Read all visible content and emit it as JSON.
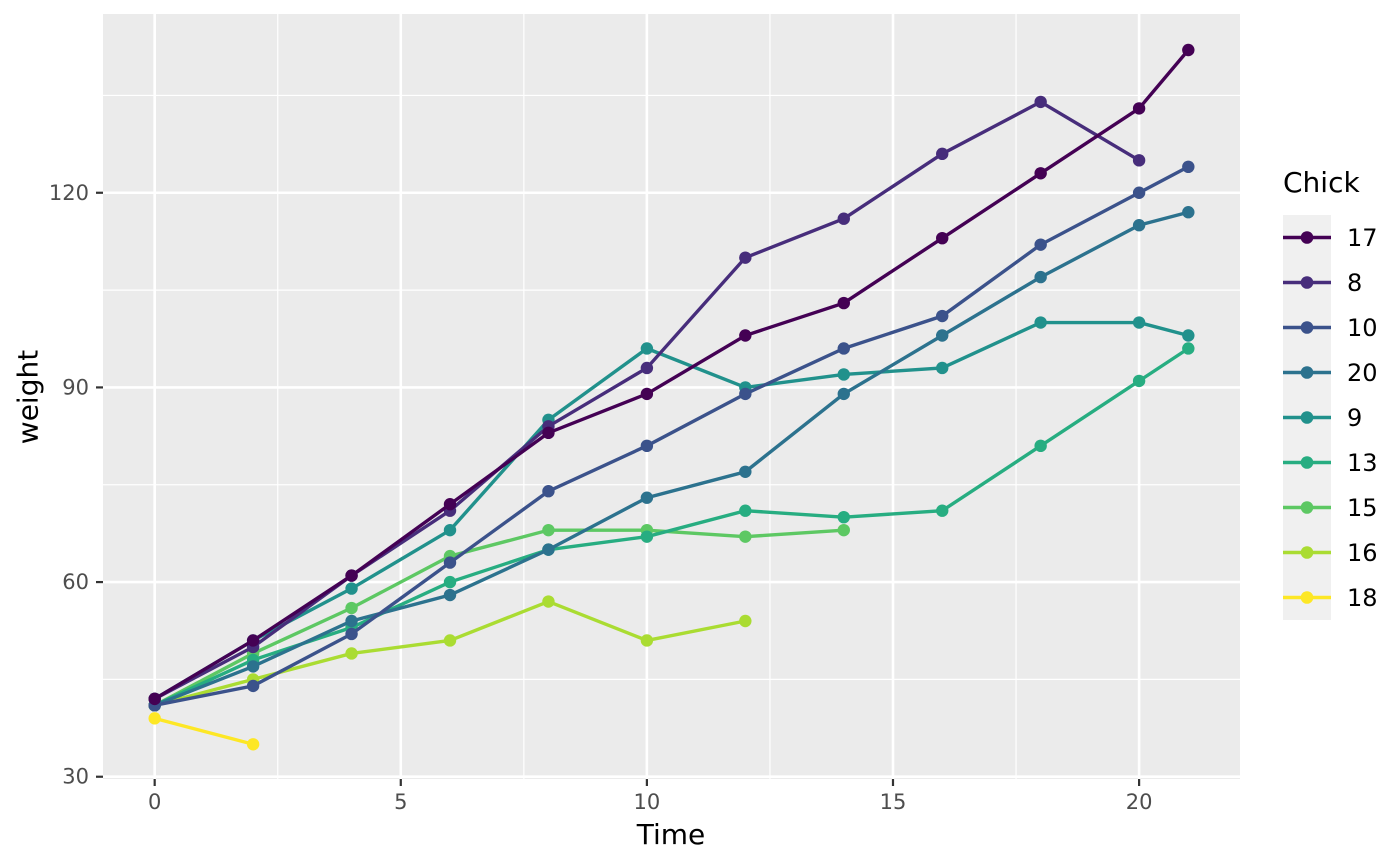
{
  "chart_data": {
    "type": "line",
    "title": "",
    "xlabel": "Time",
    "ylabel": "weight",
    "legend_title": "Chick",
    "legend_position": "right",
    "grid": true,
    "panel_background": "#EBEBEB",
    "gridline_color": "#FFFFFF",
    "tick_label_color": "#4D4D4D",
    "tick_mark_color": "#333333",
    "legend_key_background": "#F0F0F0",
    "xlim": [
      -1.05,
      22.05
    ],
    "ylim": [
      29.65,
      147.55
    ],
    "x_ticks": [
      0,
      5,
      10,
      15,
      20
    ],
    "y_ticks": [
      30,
      60,
      90,
      120
    ],
    "x_minor_ticks": [
      2.5,
      7.5,
      12.5,
      17.5
    ],
    "y_minor_ticks": [
      45,
      75,
      105,
      135
    ],
    "series": [
      {
        "name": "17",
        "color": "#440154",
        "x": [
          0,
          2,
          4,
          6,
          8,
          10,
          12,
          14,
          16,
          18,
          20,
          21
        ],
        "y": [
          42,
          51,
          61,
          72,
          83,
          89,
          98,
          103,
          113,
          123,
          133,
          142
        ]
      },
      {
        "name": "8",
        "color": "#472D7B",
        "x": [
          0,
          2,
          4,
          6,
          8,
          10,
          12,
          14,
          16,
          18,
          20
        ],
        "y": [
          42,
          50,
          61,
          71,
          84,
          93,
          110,
          116,
          126,
          134,
          125
        ]
      },
      {
        "name": "10",
        "color": "#3B528B",
        "x": [
          0,
          2,
          4,
          6,
          8,
          10,
          12,
          14,
          16,
          18,
          20,
          21
        ],
        "y": [
          41,
          44,
          52,
          63,
          74,
          81,
          89,
          96,
          101,
          112,
          120,
          124
        ]
      },
      {
        "name": "20",
        "color": "#2C728E",
        "x": [
          0,
          2,
          4,
          6,
          8,
          10,
          12,
          14,
          16,
          18,
          20,
          21
        ],
        "y": [
          41,
          47,
          54,
          58,
          65,
          73,
          77,
          89,
          98,
          107,
          115,
          117
        ]
      },
      {
        "name": "9",
        "color": "#21918C",
        "x": [
          0,
          2,
          4,
          6,
          8,
          10,
          12,
          14,
          16,
          18,
          20,
          21
        ],
        "y": [
          42,
          51,
          59,
          68,
          85,
          96,
          90,
          92,
          93,
          100,
          100,
          98
        ]
      },
      {
        "name": "13",
        "color": "#27AD81",
        "x": [
          0,
          2,
          4,
          6,
          8,
          10,
          12,
          14,
          16,
          18,
          20,
          21
        ],
        "y": [
          41,
          48,
          53,
          60,
          65,
          67,
          71,
          70,
          71,
          81,
          91,
          96
        ]
      },
      {
        "name": "15",
        "color": "#5DC863",
        "x": [
          0,
          2,
          4,
          6,
          8,
          10,
          12,
          14
        ],
        "y": [
          41,
          49,
          56,
          64,
          68,
          68,
          67,
          68
        ]
      },
      {
        "name": "16",
        "color": "#AADC32",
        "x": [
          0,
          2,
          4,
          6,
          8,
          10,
          12
        ],
        "y": [
          41,
          45,
          49,
          51,
          57,
          51,
          54
        ]
      },
      {
        "name": "18",
        "color": "#FDE725",
        "x": [
          0,
          2
        ],
        "y": [
          39,
          35
        ]
      }
    ]
  }
}
